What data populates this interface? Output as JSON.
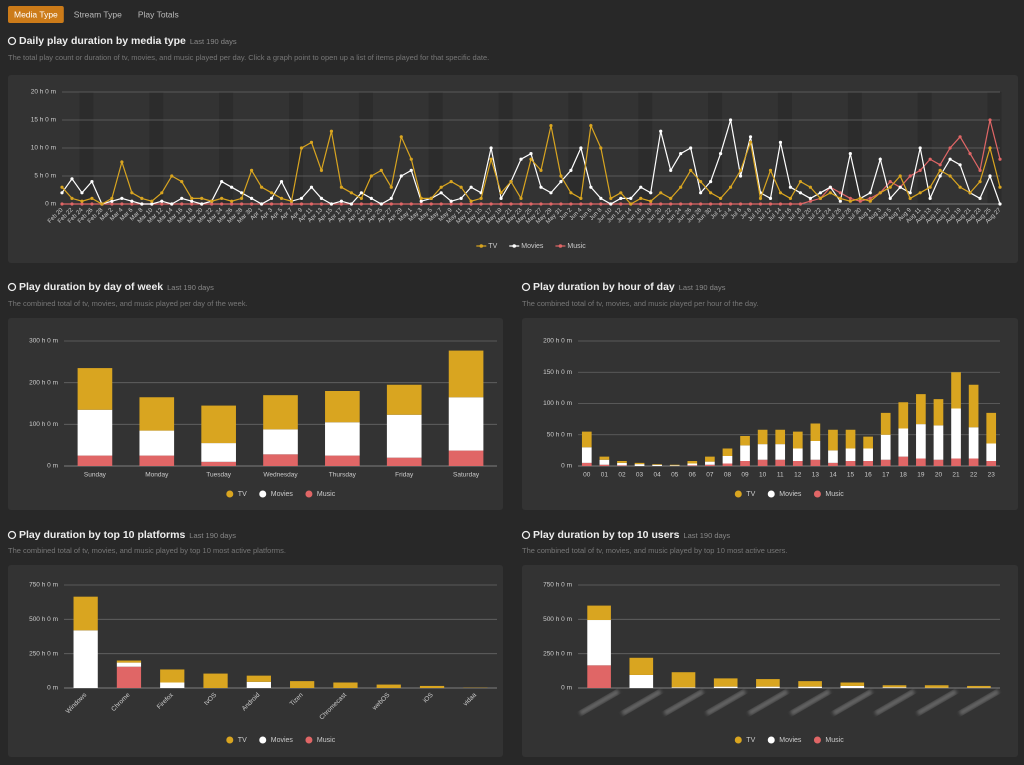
{
  "tabs": [
    "Media Type",
    "Stream Type",
    "Play Totals"
  ],
  "chart_data": [
    {
      "type": "line",
      "title": "Daily play duration by media type",
      "subtitle": "Last 190 days",
      "description": "The total play count or duration of tv, movies, and music played per day. Click a graph point to open up a list of items played for that specific date.",
      "categories": [
        "Feb 20",
        "Feb 22",
        "Feb 24",
        "Feb 26",
        "Feb 28",
        "Mar 2",
        "Mar 4",
        "Mar 6",
        "Mar 8",
        "Mar 10",
        "Mar 12",
        "Mar 14",
        "Mar 16",
        "Mar 18",
        "Mar 20",
        "Mar 22",
        "Mar 24",
        "Mar 26",
        "Mar 28",
        "Mar 30",
        "Apr 1",
        "Apr 3",
        "Apr 5",
        "Apr 7",
        "Apr 9",
        "Apr 11",
        "Apr 13",
        "Apr 15",
        "Apr 17",
        "Apr 19",
        "Apr 21",
        "Apr 23",
        "Apr 25",
        "Apr 27",
        "Apr 29",
        "May 1",
        "May 3",
        "May 5",
        "May 7",
        "May 9",
        "May 11",
        "May 13",
        "May 15",
        "May 17",
        "May 19",
        "May 21",
        "May 23",
        "May 25",
        "May 27",
        "May 29",
        "May 31",
        "Jun 2",
        "Jun 4",
        "Jun 6",
        "Jun 8",
        "Jun 10",
        "Jun 12",
        "Jun 14",
        "Jun 16",
        "Jun 18",
        "Jun 20",
        "Jun 22",
        "Jun 24",
        "Jun 26",
        "Jun 28",
        "Jun 30",
        "Jul 2",
        "Jul 4",
        "Jul 6",
        "Jul 8",
        "Jul 10",
        "Jul 12",
        "Jul 14",
        "Jul 16",
        "Jul 18",
        "Jul 20",
        "Jul 22",
        "Jul 24",
        "Jul 26",
        "Jul 28",
        "Jul 30",
        "Aug 1",
        "Aug 3",
        "Aug 5",
        "Aug 7",
        "Aug 9",
        "Aug 11",
        "Aug 13",
        "Aug 15",
        "Aug 17",
        "Aug 19",
        "Aug 21",
        "Aug 23",
        "Aug 25",
        "Aug 27"
      ],
      "series": [
        {
          "name": "TV",
          "color": "#d9a520",
          "values": [
            3,
            1,
            0.5,
            1,
            0,
            1,
            7.5,
            2,
            1,
            0.5,
            2,
            5,
            4,
            1,
            1,
            0.5,
            1,
            0.5,
            1,
            6,
            3,
            2,
            1,
            0.5,
            10,
            11,
            6,
            13,
            3,
            2,
            1,
            5,
            6,
            3,
            12,
            8,
            1,
            1,
            3,
            4,
            3,
            0.5,
            1,
            8,
            2,
            4,
            1,
            8,
            6,
            14,
            5,
            2,
            1,
            14,
            10,
            1,
            2,
            0,
            1,
            0.5,
            2,
            1,
            3,
            6,
            4,
            2,
            1,
            3,
            6,
            11,
            1,
            6,
            2,
            1,
            4,
            3,
            1,
            2,
            1,
            0.5,
            1,
            0.5,
            2,
            3,
            5,
            1,
            2,
            3,
            6,
            5,
            3,
            2,
            4,
            10,
            3
          ]
        },
        {
          "name": "Movies",
          "color": "#ffffff",
          "values": [
            2,
            4.5,
            2,
            4,
            0,
            0.5,
            1,
            0.5,
            0,
            0,
            0.5,
            0,
            1,
            0.5,
            0,
            0.5,
            4,
            3,
            2,
            1,
            0,
            1,
            4,
            0.5,
            1,
            3,
            1,
            0,
            0.5,
            0,
            2,
            1,
            0,
            1,
            5,
            6,
            0.5,
            1,
            2,
            0.5,
            1,
            3,
            2,
            10,
            1,
            4,
            8,
            9,
            3,
            2,
            4,
            6,
            10,
            3,
            1,
            0,
            1,
            1,
            3,
            2,
            13,
            6,
            9,
            10,
            2,
            4,
            9,
            15,
            5,
            12,
            2,
            1,
            11,
            3,
            2,
            1,
            2,
            3,
            0.5,
            9,
            1,
            2,
            8,
            1,
            3,
            2,
            10,
            1,
            5,
            8,
            7,
            2,
            1,
            5,
            0
          ]
        },
        {
          "name": "Music",
          "color": "#e06666",
          "values": [
            0,
            0,
            0,
            0,
            0,
            0,
            0,
            0,
            0,
            0,
            0,
            0,
            0,
            0,
            0,
            0,
            0,
            0,
            0,
            0,
            0,
            0,
            0,
            0,
            0,
            0,
            0,
            0,
            0,
            0,
            0,
            0,
            0,
            0,
            0,
            0,
            0,
            0,
            0,
            0,
            0,
            0,
            0,
            0,
            0,
            0,
            0,
            0,
            0,
            0,
            0,
            0,
            0,
            0,
            0,
            0,
            0,
            0,
            0,
            0,
            0,
            0,
            0,
            0,
            0,
            0,
            0,
            0,
            0,
            0,
            0,
            0,
            0,
            0,
            0,
            0.5,
            1,
            3,
            2,
            1,
            0.5,
            1,
            2,
            4,
            3,
            5,
            6,
            8,
            7,
            10,
            12,
            9,
            6,
            15,
            8
          ]
        }
      ],
      "ylim": [
        0,
        20
      ],
      "yticks": [
        {
          "value": 0,
          "label": "0 m"
        },
        {
          "value": 5,
          "label": "5 h 0 m"
        },
        {
          "value": 10,
          "label": "10 h 0 m"
        },
        {
          "value": 15,
          "label": "15 h 0 m"
        },
        {
          "value": 20,
          "label": "20 h 0 m"
        }
      ],
      "grid": true
    },
    {
      "type": "bar",
      "title": "Play duration by day of week",
      "subtitle": "Last 190 days",
      "description": "The combined total of tv, movies, and music played per day of the week.",
      "categories": [
        "Sunday",
        "Monday",
        "Tuesday",
        "Wednesday",
        "Thursday",
        "Friday",
        "Saturday"
      ],
      "series": [
        {
          "name": "TV",
          "color": "#d9a520",
          "values": [
            100,
            80,
            90,
            82,
            75,
            72,
            112
          ]
        },
        {
          "name": "Movies",
          "color": "#ffffff",
          "values": [
            110,
            60,
            45,
            60,
            80,
            103,
            128
          ]
        },
        {
          "name": "Music",
          "color": "#e06666",
          "values": [
            25,
            25,
            10,
            28,
            25,
            20,
            37
          ]
        }
      ],
      "ylim": [
        0,
        300
      ],
      "yticks": [
        {
          "value": 0,
          "label": "0 m"
        },
        {
          "value": 100,
          "label": "100 h 0 m"
        },
        {
          "value": 200,
          "label": "200 h 0 m"
        },
        {
          "value": 300,
          "label": "300 h 0 m"
        }
      ],
      "grid": true
    },
    {
      "type": "bar",
      "title": "Play duration by hour of day",
      "subtitle": "Last 190 days",
      "description": "The combined total of tv, movies, and music played per hour of the day.",
      "categories": [
        "00",
        "01",
        "02",
        "03",
        "04",
        "05",
        "06",
        "07",
        "08",
        "09",
        "10",
        "11",
        "12",
        "13",
        "14",
        "15",
        "16",
        "17",
        "18",
        "19",
        "20",
        "21",
        "22",
        "23"
      ],
      "series": [
        {
          "name": "TV",
          "color": "#d9a520",
          "values": [
            25,
            5,
            3,
            2,
            1,
            1,
            4,
            8,
            12,
            15,
            23,
            23,
            27,
            28,
            33,
            30,
            19,
            35,
            42,
            48,
            42,
            58,
            68,
            49
          ]
        },
        {
          "name": "Movies",
          "color": "#ffffff",
          "values": [
            25,
            8,
            4,
            3,
            2,
            1,
            3,
            5,
            12,
            25,
            25,
            25,
            20,
            30,
            20,
            20,
            20,
            40,
            45,
            55,
            55,
            80,
            50,
            28
          ]
        },
        {
          "name": "Music",
          "color": "#e06666",
          "values": [
            5,
            2,
            1,
            0,
            0,
            0,
            1,
            2,
            4,
            8,
            10,
            10,
            8,
            10,
            5,
            8,
            8,
            10,
            15,
            12,
            10,
            12,
            12,
            8
          ]
        }
      ],
      "ylim": [
        0,
        200
      ],
      "yticks": [
        {
          "value": 0,
          "label": "0 m"
        },
        {
          "value": 50,
          "label": "50 h 0 m"
        },
        {
          "value": 100,
          "label": "100 h 0 m"
        },
        {
          "value": 150,
          "label": "150 h 0 m"
        },
        {
          "value": 200,
          "label": "200 h 0 m"
        }
      ],
      "grid": true
    },
    {
      "type": "bar",
      "title": "Play duration by top 10 platforms",
      "subtitle": "Last 190 days",
      "description": "The combined total of tv, movies, and music played by top 10 most active platforms.",
      "categories": [
        "Windows",
        "Chrome",
        "Firefox",
        "tvOS",
        "Android",
        "Tizen",
        "Chromecast",
        "webOS",
        "iOS",
        "vidaa"
      ],
      "series": [
        {
          "name": "TV",
          "color": "#d9a520",
          "values": [
            245,
            15,
            95,
            105,
            45,
            50,
            40,
            25,
            15,
            2
          ]
        },
        {
          "name": "Movies",
          "color": "#ffffff",
          "values": [
            420,
            30,
            40,
            0,
            45,
            0,
            0,
            0,
            0,
            0
          ]
        },
        {
          "name": "Music",
          "color": "#e06666",
          "values": [
            0,
            155,
            0,
            0,
            0,
            0,
            0,
            0,
            0,
            0
          ]
        }
      ],
      "ylim": [
        0,
        750
      ],
      "yticks": [
        {
          "value": 0,
          "label": "0 m"
        },
        {
          "value": 250,
          "label": "250 h 0 m"
        },
        {
          "value": 500,
          "label": "500 h 0 m"
        },
        {
          "value": 750,
          "label": "750 h 0 m"
        }
      ],
      "grid": true,
      "rotate_labels": true
    },
    {
      "type": "bar",
      "title": "Play duration by top 10 users",
      "subtitle": "Last 190 days",
      "description": "The combined total of tv, movies, and music played by top 10 most active users.",
      "categories": [
        null,
        null,
        null,
        null,
        null,
        null,
        null,
        null,
        null,
        null
      ],
      "series": [
        {
          "name": "TV",
          "color": "#d9a520",
          "values": [
            105,
            125,
            110,
            60,
            55,
            40,
            25,
            15,
            18,
            13
          ]
        },
        {
          "name": "Movies",
          "color": "#ffffff",
          "values": [
            330,
            95,
            5,
            10,
            10,
            10,
            15,
            5,
            2,
            2
          ]
        },
        {
          "name": "Music",
          "color": "#e06666",
          "values": [
            165,
            0,
            0,
            0,
            0,
            0,
            0,
            0,
            0,
            0
          ]
        }
      ],
      "ylim": [
        0,
        750
      ],
      "yticks": [
        {
          "value": 0,
          "label": "0 m"
        },
        {
          "value": 250,
          "label": "250 h 0 m"
        },
        {
          "value": 500,
          "label": "500 h 0 m"
        },
        {
          "value": 750,
          "label": "750 h 0 m"
        }
      ],
      "grid": true,
      "rotate_labels": true
    }
  ]
}
